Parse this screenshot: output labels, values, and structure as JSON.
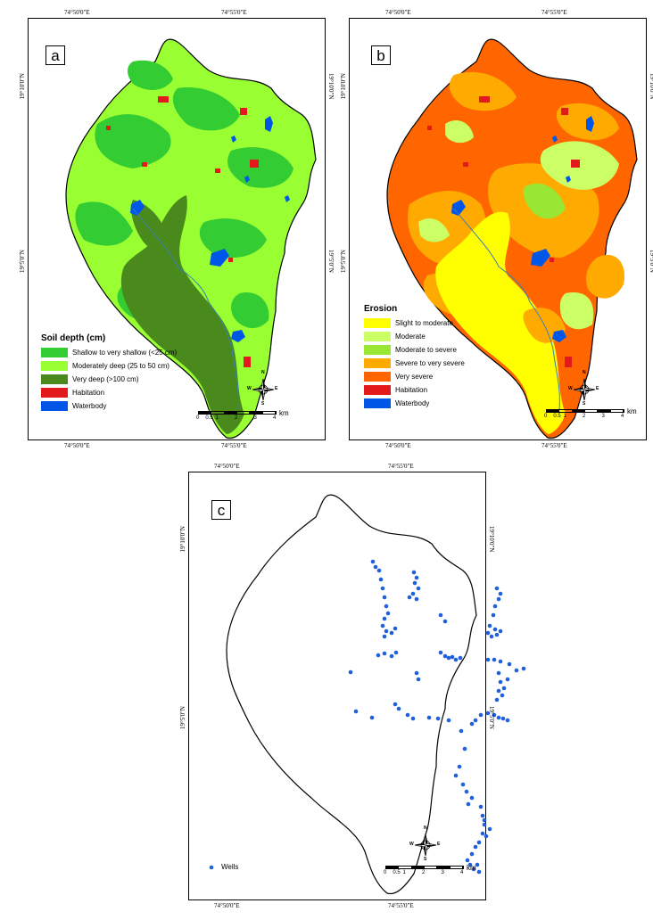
{
  "coords": {
    "lon_left": "74°50'0\"E",
    "lon_right": "74°55'0\"E",
    "lat_top": "19°10'0\"N",
    "lat_bottom": "19°5'0\"N"
  },
  "compass": {
    "n": "N",
    "s": "S",
    "e": "E",
    "w": "W"
  },
  "scalebar": {
    "ticks": [
      "0",
      "0.5",
      "1",
      "2",
      "3",
      "4"
    ],
    "unit": "km"
  },
  "panel_a": {
    "label": "a",
    "legend_title": "Soil depth (cm)",
    "legend": [
      {
        "label": "Shallow to very shallow (<25 cm)",
        "color": "#33cc33"
      },
      {
        "label": "Moderately deep (25 to 50 cm)",
        "color": "#99ff33"
      },
      {
        "label": "Very deep (>100 cm)",
        "color": "#4a8a1c"
      },
      {
        "label": "Habitation",
        "color": "#e31a1c"
      },
      {
        "label": "Waterbody",
        "color": "#0057e7"
      }
    ]
  },
  "panel_b": {
    "label": "b",
    "legend_title": "Erosion",
    "legend": [
      {
        "label": "Slight to moderate",
        "color": "#ffff00"
      },
      {
        "label": "Moderate",
        "color": "#ccff66"
      },
      {
        "label": "Moderate to severe",
        "color": "#99e633"
      },
      {
        "label": "Severe to very severe",
        "color": "#ffaa00"
      },
      {
        "label": "Very severe",
        "color": "#ff6600"
      },
      {
        "label": "Habitation",
        "color": "#e31a1c"
      },
      {
        "label": "Waterbody",
        "color": "#0057e7"
      }
    ]
  },
  "panel_c": {
    "label": "c",
    "legend": [
      {
        "label": "Wells",
        "color": "#1f5fe0"
      }
    ]
  }
}
